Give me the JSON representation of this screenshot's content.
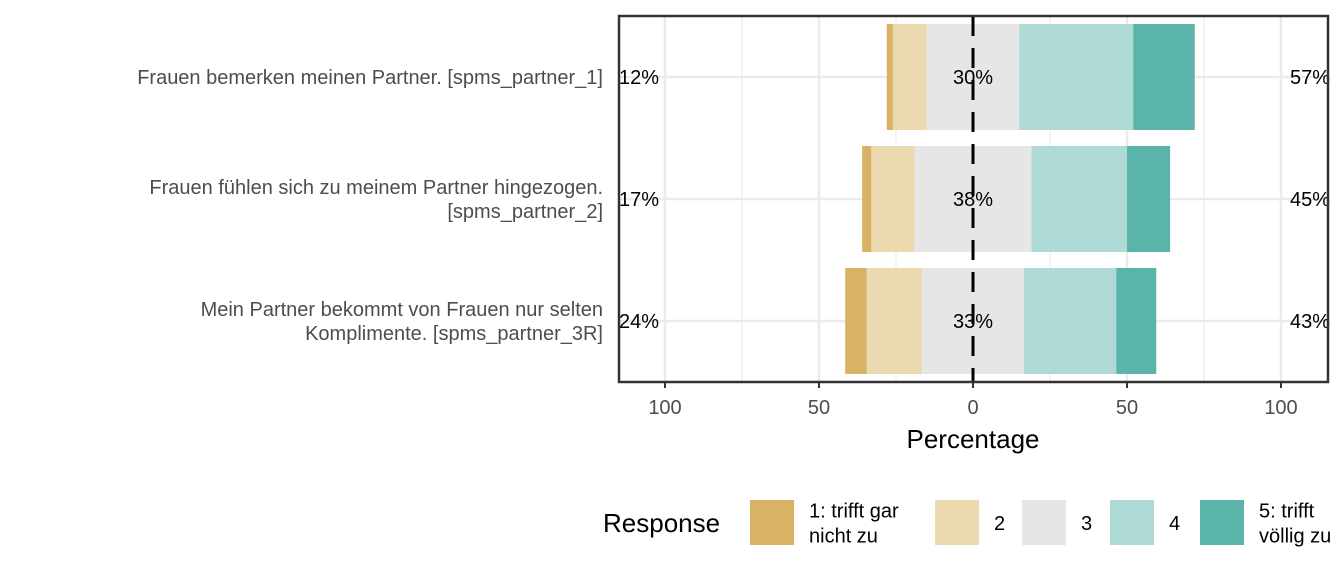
{
  "chart_data": {
    "type": "bar",
    "subtype": "diverging-stacked-likert",
    "items": [
      {
        "label": [
          "Frauen bemerken meinen Partner. [spms_partner_1]"
        ],
        "values": [
          2,
          11,
          30,
          37,
          20
        ],
        "low_label": "12%",
        "mid_label": "30%",
        "high_label": "57%"
      },
      {
        "label": [
          "Frauen fühlen sich zu meinem Partner hingezogen.",
          "[spms_partner_2]"
        ],
        "values": [
          3,
          14,
          38,
          31,
          14
        ],
        "low_label": "17%",
        "mid_label": "38%",
        "high_label": "45%"
      },
      {
        "label": [
          "Mein Partner bekommt von Frauen nur selten",
          "Komplimente. [spms_partner_3R]"
        ],
        "values": [
          7,
          18,
          33,
          30,
          13
        ],
        "low_label": "24%",
        "mid_label": "33%",
        "high_label": "43%"
      }
    ],
    "xlabel": "Percentage",
    "xlim": [
      -115,
      115
    ],
    "x_ticks": [
      -100,
      -50,
      0,
      50,
      100
    ],
    "x_tick_labels": [
      "100",
      "50",
      "0",
      "50",
      "100"
    ],
    "grid": true,
    "legend": {
      "title": "Response",
      "position": "bottom",
      "entries": [
        {
          "label": [
            "1: trifft gar",
            "nicht zu"
          ],
          "color": "#D9B365"
        },
        {
          "label": [
            "2"
          ],
          "color": "#EBD9B0"
        },
        {
          "label": [
            "3"
          ],
          "color": "#E6E6E6"
        },
        {
          "label": [
            "4"
          ],
          "color": "#AED9D5"
        },
        {
          "label": [
            "5: trifft",
            "völlig zu"
          ],
          "color": "#5AB4AA"
        }
      ]
    }
  }
}
